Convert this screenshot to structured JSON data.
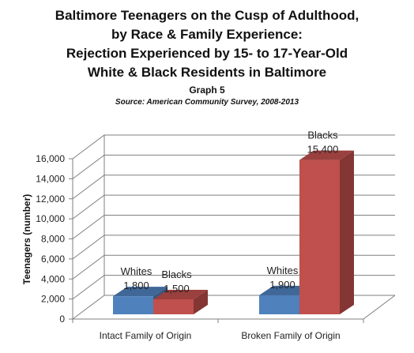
{
  "title_lines": [
    "Baltimore Teenagers on the Cusp of Adulthood,",
    "by Race & Family Experience:",
    "Rejection Experienced by 15- to 17-Year-Old",
    "White & Black Residents in Baltimore"
  ],
  "subtitle": "Graph 5",
  "source": "Source: American Community Survey, 2008-2013",
  "colors": {
    "whites": "#4f81bd",
    "blacks": "#c0504d",
    "grid": "#7f7f7f"
  },
  "chart_data": {
    "type": "bar",
    "categories": [
      "Intact Family of Origin",
      "Broken Family of Origin"
    ],
    "series": [
      {
        "name": "Whites",
        "values": [
          1800,
          1900
        ],
        "value_labels": [
          "1,800",
          "1,900"
        ]
      },
      {
        "name": "Blacks",
        "values": [
          1500,
          15400
        ],
        "value_labels": [
          "1,500",
          "15,400"
        ]
      }
    ],
    "ylabel": "Teenagers (number)",
    "xlabel": "",
    "ylim": [
      0,
      16000
    ],
    "yticks": [
      0,
      2000,
      4000,
      6000,
      8000,
      10000,
      12000,
      14000,
      16000
    ],
    "ytick_labels": [
      "0",
      "2,000",
      "4,000",
      "6,000",
      "8,000",
      "10,000",
      "12,000",
      "14,000",
      "16,000"
    ],
    "grid": true,
    "style": "3d-clustered-column"
  }
}
